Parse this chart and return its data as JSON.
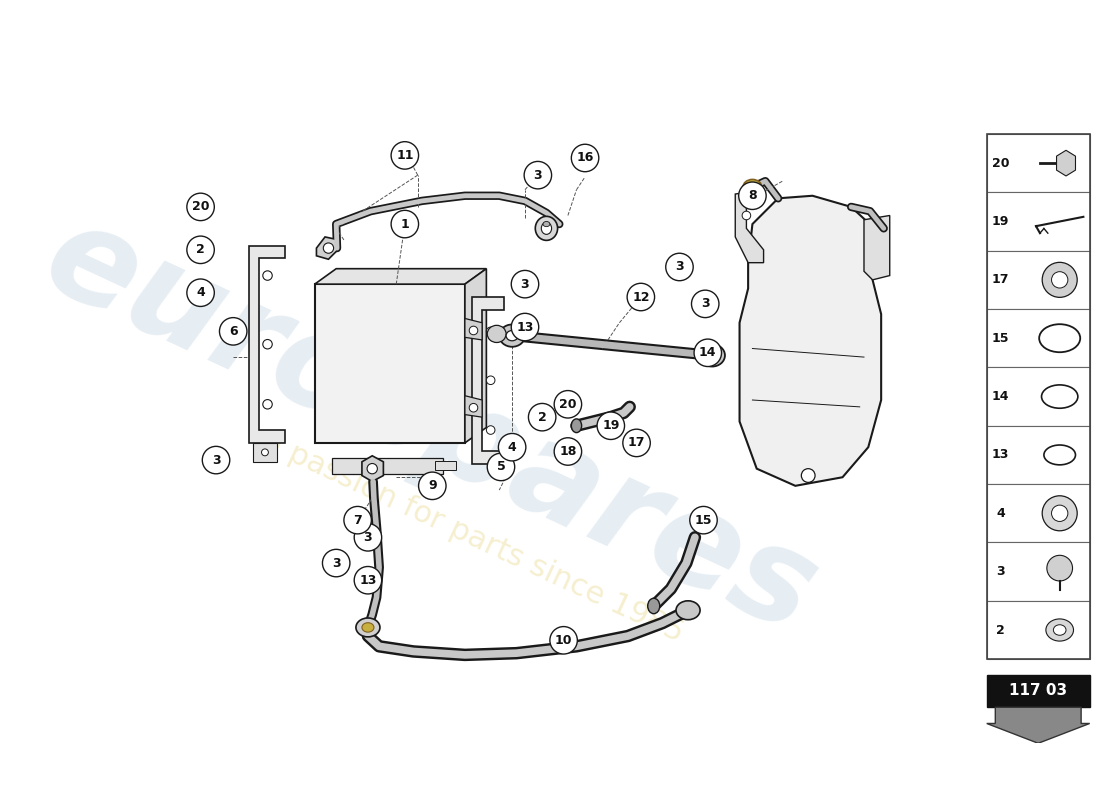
{
  "bg_color": "#ffffff",
  "watermark_text1": "eurospares",
  "watermark_text2": "a passion for parts since 1985",
  "part_number": "117 03",
  "lc": "#1a1a1a",
  "sidebar_items": [
    20,
    19,
    17,
    15,
    14,
    13,
    4,
    3,
    2
  ]
}
